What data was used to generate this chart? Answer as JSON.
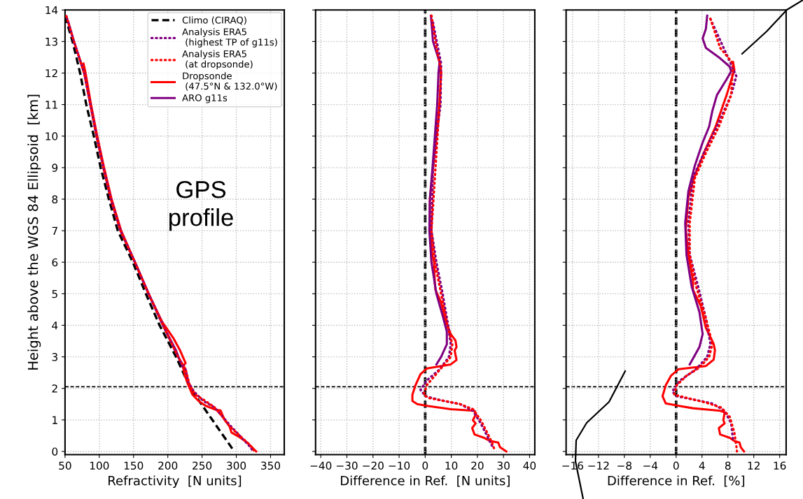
{
  "chart_data": [
    {
      "type": "line",
      "xlabel": "Refractivity  [N units]",
      "ylabel": "Height above the WGS 84 Ellipsoid  [km]",
      "xlim": [
        50,
        370
      ],
      "ylim": [
        -0.1,
        14
      ],
      "xticks": [
        50,
        100,
        150,
        200,
        250,
        300,
        350
      ],
      "yticks": [
        0,
        1,
        2,
        3,
        4,
        5,
        6,
        7,
        8,
        9,
        10,
        11,
        12,
        13,
        14
      ],
      "grid": true,
      "legend": "top right",
      "annotations": [
        "GPS\nprofile"
      ],
      "ref_lines": [
        {
          "axis": "y",
          "value": 2.05,
          "color": "#000000",
          "line_style": "dashed"
        }
      ],
      "series": [
        {
          "name": "Climo (CIRAQ)",
          "color": "#000000",
          "line_style": "dashed",
          "x": [
            50,
            61,
            72,
            81,
            92,
            102,
            114,
            127,
            149,
            168,
            188,
            212,
            233,
            265,
            297
          ],
          "values": [
            13.8,
            13,
            12,
            11,
            10,
            9,
            8,
            7,
            6,
            5,
            4,
            3,
            2,
            1,
            0
          ]
        },
        {
          "name": "Analysis ERA5\n (highest TP of g11s)",
          "color": "#800080",
          "line_style": "dotted",
          "x": [
            55,
            63,
            78,
            87,
            96,
            106,
            117,
            131,
            152,
            172,
            193,
            215,
            226,
            230,
            238,
            252,
            268,
            280,
            292,
            305,
            318,
            325
          ],
          "values": [
            13.6,
            13,
            12,
            11,
            10,
            9,
            8,
            7,
            6,
            5,
            4,
            3,
            2.6,
            2.2,
            1.9,
            1.6,
            1.4,
            1.1,
            0.8,
            0.5,
            0.2,
            0
          ]
        },
        {
          "name": "Analysis ERA5\n (at dropsonde)",
          "color": "#ff0000",
          "line_style": "dotted",
          "x": [
            52,
            63,
            78,
            87,
            96,
            106,
            117,
            131,
            152,
            172,
            193,
            215,
            226,
            232,
            240,
            255,
            268,
            280,
            290,
            305,
            320,
            327
          ],
          "values": [
            13.8,
            13,
            12,
            11,
            10,
            9,
            8,
            7,
            6,
            5,
            4,
            3,
            2.6,
            2.1,
            1.8,
            1.6,
            1.4,
            1.1,
            0.8,
            0.5,
            0.2,
            0
          ]
        },
        {
          "name": "Dropsonde\n (47.5°N & 132.0°W)",
          "color": "#ff0000",
          "line_style": "solid",
          "x": [
            77,
            80,
            88,
            97,
            107,
            118,
            132,
            152,
            172,
            192,
            208,
            218,
            226,
            222,
            225,
            230,
            236,
            245,
            255,
            270,
            277,
            283,
            290,
            293,
            305,
            315,
            329
          ],
          "values": [
            12.3,
            12,
            11,
            10,
            9,
            8,
            7,
            6,
            5,
            4.1,
            3.6,
            3.2,
            2.8,
            2.7,
            2.4,
            2.1,
            1.8,
            1.6,
            1.45,
            1.32,
            1.3,
            1.0,
            0.8,
            0.6,
            0.45,
            0.3,
            0
          ]
        },
        {
          "name": "ARO g11s",
          "color": "#800080",
          "line_style": "solid",
          "x": [
            52,
            63,
            78,
            87,
            96,
            106,
            117,
            131,
            152,
            172,
            193,
            212,
            221
          ],
          "values": [
            13.8,
            13,
            12,
            11,
            10,
            9,
            8,
            7,
            6,
            5,
            4,
            3.2,
            2.7
          ]
        }
      ]
    },
    {
      "type": "line",
      "xlabel": "Difference in Ref.  [N units]",
      "xlim": [
        -42,
        42
      ],
      "ylim": [
        -0.1,
        14
      ],
      "xticks": [
        {
          "value": -40,
          "label": "−40"
        },
        {
          "value": -30,
          "label": "−30"
        },
        {
          "value": -20,
          "label": "−20"
        },
        {
          "value": -10,
          "label": "−10"
        },
        0,
        10,
        20,
        30,
        40
      ],
      "yticks": [
        {
          "value": 0,
          "label": null
        },
        {
          "value": 1,
          "label": null
        },
        {
          "value": 2,
          "label": null
        },
        {
          "value": 3,
          "label": null
        },
        {
          "value": 4,
          "label": null
        },
        {
          "value": 5,
          "label": null
        },
        {
          "value": 6,
          "label": null
        },
        {
          "value": 7,
          "label": null
        },
        {
          "value": 8,
          "label": null
        },
        {
          "value": 9,
          "label": null
        },
        {
          "value": 10,
          "label": null
        },
        {
          "value": 11,
          "label": null
        },
        {
          "value": 12,
          "label": null
        },
        {
          "value": 13,
          "label": null
        },
        {
          "value": 14,
          "label": null
        }
      ],
      "tick_labels": "x",
      "grid": true,
      "ref_lines": [
        {
          "axis": "x",
          "value": 0,
          "color": "#000000",
          "line_style": "dashed"
        },
        {
          "axis": "y",
          "value": 2.05,
          "color": "#000000",
          "line_style": "dashed"
        }
      ],
      "series": [
        {
          "color": "#800080",
          "line_style": "dotted",
          "x": [
            3.0,
            6.1,
            5.9,
            4.3,
            3.0,
            2.4,
            4.3,
            6.7,
            8.8,
            9.8,
            9.1,
            5.5,
            0.6,
            -1.8,
            0.2,
            6.1,
            13.4,
            18.3,
            21.3,
            23.8,
            25.6
          ],
          "values": [
            13.6,
            12.3,
            11,
            10,
            9,
            7,
            6,
            5,
            4,
            3.4,
            3.0,
            2.6,
            2.25,
            1.95,
            1.75,
            1.62,
            1.5,
            1.29,
            0.89,
            0.48,
            0.18
          ]
        },
        {
          "color": "#ff0000",
          "line_style": "dotted",
          "x": [
            2.4,
            4.3,
            6.1,
            5.5,
            2.4,
            3.7,
            6.1,
            8.5,
            10.4,
            9.8,
            6.7,
            3.7,
            0.6,
            -0.6,
            1.2,
            7.3,
            13.4,
            18.3,
            21.3,
            23.2,
            25.6,
            26.8
          ],
          "values": [
            13.82,
            12.8,
            12.1,
            11,
            7,
            6,
            5,
            4.0,
            3.4,
            3.0,
            2.7,
            2.4,
            2.1,
            1.8,
            1.7,
            1.6,
            1.5,
            1.34,
            0.99,
            0.69,
            0.28,
            0
          ]
        },
        {
          "color": "#ff0000",
          "line_style": "solid",
          "x": [
            5.5,
            6.1,
            5.5,
            4.3,
            3.0,
            1.8,
            1.8,
            2.7,
            3.4,
            3.7,
            3.9,
            6.1,
            7.9,
            9.8,
            11.6,
            12.0,
            11.3,
            12.0,
            9.8,
            0.6,
            -1.8,
            -3.7,
            -4.9,
            -4.9,
            -3.0,
            1.2,
            9.8,
            18.9,
            19.5,
            18.3,
            19.3,
            18.0,
            18.9,
            22.6,
            25.0,
            28.0,
            28.7,
            31.1
          ],
          "values": [
            12.35,
            12.0,
            11,
            10,
            9,
            8,
            7,
            6.24,
            6,
            5.33,
            5.13,
            4.73,
            4.12,
            3.72,
            3.52,
            3.31,
            3.2,
            2.9,
            2.76,
            2.63,
            2.45,
            2.1,
            1.8,
            1.6,
            1.5,
            1.44,
            1.34,
            1.29,
            1.19,
            0.99,
            0.89,
            0.74,
            0.54,
            0.43,
            0.33,
            0.28,
            0.13,
            0
          ]
        },
        {
          "color": "#800080",
          "line_style": "solid",
          "x": [
            2.2,
            3.0,
            5.5,
            5.1,
            4.6,
            3.7,
            2.8,
            1.8,
            1.6,
            2.4,
            4.3,
            6.7,
            8.3,
            8.3,
            6.1,
            4.3
          ],
          "values": [
            13.82,
            13.0,
            12.35,
            12.0,
            11.0,
            10,
            9,
            8,
            7,
            6,
            5,
            4.3,
            3.8,
            3.4,
            3.0,
            2.76
          ]
        }
      ]
    },
    {
      "type": "line",
      "xlabel": "Difference in Ref.  [%]",
      "xlim": [
        -17,
        17
      ],
      "ylim": [
        -0.1,
        14
      ],
      "xticks": [
        {
          "value": -16,
          "label": "−16"
        },
        {
          "value": -12,
          "label": "−12"
        },
        {
          "value": -8,
          "label": "−8"
        },
        {
          "value": -4,
          "label": "−4"
        },
        0,
        4,
        8,
        12,
        16
      ],
      "yticks": [
        {
          "value": 0,
          "label": null
        },
        {
          "value": 1,
          "label": null
        },
        {
          "value": 2,
          "label": null
        },
        {
          "value": 3,
          "label": null
        },
        {
          "value": 4,
          "label": null
        },
        {
          "value": 5,
          "label": null
        },
        {
          "value": 6,
          "label": null
        },
        {
          "value": 7,
          "label": null
        },
        {
          "value": 8,
          "label": null
        },
        {
          "value": 9,
          "label": null
        },
        {
          "value": 10,
          "label": null
        },
        {
          "value": 11,
          "label": null
        },
        {
          "value": 12,
          "label": null
        },
        {
          "value": 13,
          "label": null
        },
        {
          "value": 14,
          "label": null
        }
      ],
      "tick_labels": "x",
      "grid": true,
      "ref_lines": [
        {
          "axis": "x",
          "value": 0,
          "color": "#000000",
          "line_style": "dashed"
        },
        {
          "axis": "y",
          "value": 2.05,
          "color": "#000000",
          "line_style": "dashed"
        }
      ],
      "series": [
        {
          "color": "#800080",
          "line_style": "dotted",
          "x": [
            5.3,
            8.0,
            9.3,
            8.5,
            6.3,
            4.3,
            2.6,
            1.9,
            2.1,
            3.4,
            4.6,
            5.3,
            4.8,
            3.1,
            0.6,
            -0.6,
            0.1,
            2.6,
            5.6,
            7.5,
            8.5,
            8.8
          ],
          "values": [
            13.72,
            12.5,
            11.9,
            11.3,
            10.3,
            9.47,
            8.67,
            7.25,
            6.24,
            5.23,
            4.22,
            3.41,
            3.0,
            2.61,
            2.25,
            1.9,
            1.75,
            1.65,
            1.52,
            1.29,
            0.89,
            0.35
          ]
        },
        {
          "color": "#ff0000",
          "line_style": "dotted",
          "x": [
            5.3,
            6.8,
            8.8,
            8.5,
            6.6,
            4.6,
            2.9,
            2.1,
            2.1,
            3.1,
            4.6,
            5.6,
            5.1,
            3.6,
            1.6,
            0.1,
            -0.3,
            1.6,
            4.6,
            7.0,
            8.3,
            9.0,
            9.3,
            9.4
          ],
          "values": [
            13.72,
            12.8,
            12.3,
            11.3,
            10.3,
            9.47,
            8.67,
            7.25,
            6.24,
            5.23,
            4.22,
            3.41,
            3.0,
            2.66,
            2.4,
            2.1,
            1.8,
            1.7,
            1.55,
            1.39,
            1.09,
            0.59,
            0.18,
            0
          ]
        },
        {
          "color": "#ff0000",
          "line_style": "solid",
          "x": [
            8.8,
            9.0,
            7.8,
            6.1,
            4.3,
            2.9,
            1.9,
            1.5,
            1.9,
            2.6,
            2.6,
            3.8,
            4.6,
            5.8,
            6.0,
            5.8,
            4.6,
            0.4,
            -0.8,
            -1.6,
            -2.1,
            -1.6,
            0.6,
            2.6,
            6.8,
            7.5,
            7.3,
            7.5,
            6.6,
            6.8,
            8.3,
            9.0,
            9.8,
            10.0,
            10.5
          ],
          "values": [
            12.35,
            12.1,
            11.3,
            10.3,
            9.47,
            8.77,
            8.06,
            7.05,
            6.24,
            5.43,
            5.13,
            4.62,
            3.92,
            3.41,
            3.21,
            2.91,
            2.71,
            2.61,
            2.4,
            2.1,
            1.75,
            1.52,
            1.44,
            1.37,
            1.29,
            1.24,
            0.99,
            0.89,
            0.74,
            0.54,
            0.43,
            0.33,
            0.28,
            0.13,
            0
          ]
        },
        {
          "color": "#800080",
          "line_style": "solid",
          "x": [
            4.8,
            4.6,
            4.1,
            4.6,
            6.6,
            8.3,
            8.5,
            7.8,
            6.3,
            5.6,
            5.1,
            4.1,
            2.9,
            1.9,
            1.4,
            1.6,
            2.4,
            3.6,
            4.1,
            3.6,
            2.1
          ],
          "values": [
            13.82,
            13.4,
            13.1,
            12.8,
            12.5,
            12.2,
            12.05,
            11.8,
            11.3,
            10.8,
            10.3,
            9.8,
            9.07,
            8.26,
            7.25,
            6.24,
            5.23,
            4.42,
            3.72,
            3.31,
            2.76
          ]
        }
      ]
    }
  ]
}
